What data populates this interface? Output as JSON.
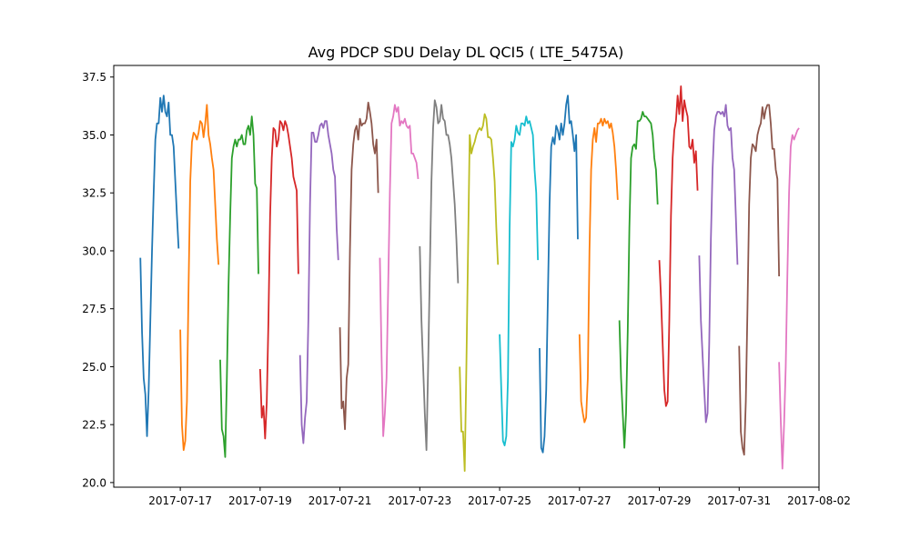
{
  "chart_data": {
    "type": "line",
    "title": "Avg PDCP SDU Delay DL QCI5 ( LTE_5475A)",
    "xlabel": "",
    "ylabel": "",
    "x_axis": "date",
    "x_range": [
      "2017-07-15T08:00",
      "2017-08-02T00:00"
    ],
    "ylim": [
      19.8,
      38.0
    ],
    "xticks": [
      "2017-07-17",
      "2017-07-19",
      "2017-07-21",
      "2017-07-23",
      "2017-07-25",
      "2017-07-27",
      "2017-07-29",
      "2017-07-31",
      "2017-08-02"
    ],
    "yticks": [
      20.0,
      22.5,
      25.0,
      27.5,
      30.0,
      32.5,
      35.0,
      37.5
    ],
    "ytick_labels": [
      "20.0",
      "22.5",
      "25.0",
      "27.5",
      "30.0",
      "32.5",
      "35.0",
      "37.5"
    ],
    "grid": false,
    "legend": "none",
    "series_colors": [
      "#1f77b4",
      "#ff7f0e",
      "#2ca02c",
      "#d62728",
      "#9467bd",
      "#8c564b",
      "#e377c2",
      "#7f7f7f",
      "#bcbd22",
      "#17becf"
    ],
    "series": [
      {
        "date": "2017-07-16",
        "values": [
          29.7,
          26.5,
          24.5,
          23.8,
          22.0,
          24.0,
          27.0,
          30.0,
          32.5,
          34.8,
          35.5,
          35.5,
          36.6,
          36.0,
          36.7,
          36.0,
          35.8,
          36.4,
          35.0,
          35.0,
          34.5,
          33.0,
          31.5,
          30.1
        ]
      },
      {
        "date": "2017-07-17",
        "values": [
          26.6,
          22.5,
          21.4,
          21.8,
          23.5,
          28.5,
          33.0,
          34.7,
          35.1,
          35.0,
          34.8,
          35.1,
          35.6,
          35.5,
          34.9,
          35.5,
          36.3,
          35.0,
          34.6,
          34.0,
          33.5,
          32.0,
          30.5,
          29.4
        ]
      },
      {
        "date": "2017-07-18",
        "values": [
          25.3,
          22.3,
          22.0,
          21.1,
          24.5,
          28.5,
          31.5,
          34.0,
          34.5,
          34.8,
          34.5,
          34.8,
          34.8,
          35.0,
          34.6,
          34.6,
          35.2,
          35.4,
          35.0,
          35.8,
          35.0,
          32.9,
          32.7,
          29.0
        ]
      },
      {
        "date": "2017-07-19",
        "values": [
          24.9,
          22.8,
          23.3,
          21.9,
          23.5,
          27.0,
          31.5,
          34.0,
          35.3,
          35.2,
          34.5,
          34.8,
          35.6,
          35.5,
          35.2,
          35.6,
          35.4,
          35.0,
          34.5,
          34.0,
          33.2,
          32.9,
          32.6,
          29.0
        ]
      },
      {
        "date": "2017-07-20",
        "values": [
          25.5,
          22.5,
          21.7,
          22.8,
          23.5,
          27.0,
          32.0,
          35.1,
          35.1,
          34.7,
          34.7,
          35.0,
          35.4,
          35.5,
          35.3,
          35.6,
          35.6,
          35.0,
          34.6,
          34.2,
          33.5,
          33.2,
          31.0,
          29.6
        ]
      },
      {
        "date": "2017-07-21",
        "values": [
          26.7,
          23.2,
          23.5,
          22.3,
          24.5,
          25.1,
          30.0,
          33.5,
          34.6,
          35.2,
          35.4,
          34.8,
          35.7,
          35.4,
          35.5,
          35.5,
          35.7,
          36.4,
          36.0,
          35.5,
          34.6,
          34.2,
          34.8,
          32.5
        ]
      },
      {
        "date": "2017-07-22",
        "values": [
          29.7,
          25.5,
          22.0,
          23.0,
          24.5,
          28.5,
          32.5,
          35.5,
          35.8,
          36.3,
          36.0,
          36.2,
          35.4,
          35.6,
          35.5,
          35.7,
          35.4,
          35.3,
          35.4,
          34.2,
          34.2,
          34.0,
          33.8,
          33.1
        ]
      },
      {
        "date": "2017-07-23",
        "values": [
          30.2,
          27.0,
          25.0,
          23.0,
          21.4,
          25.0,
          29.0,
          33.0,
          35.3,
          36.5,
          36.2,
          35.5,
          35.6,
          36.3,
          35.7,
          35.6,
          35.0,
          35.0,
          34.6,
          34.0,
          33.0,
          32.0,
          30.5,
          28.6
        ]
      },
      {
        "date": "2017-07-24",
        "values": [
          25.0,
          22.2,
          22.2,
          20.5,
          25.0,
          30.0,
          35.0,
          34.2,
          34.5,
          34.7,
          35.0,
          35.2,
          35.3,
          35.2,
          35.4,
          35.9,
          35.7,
          34.9,
          34.9,
          34.8,
          34.0,
          33.0,
          31.0,
          29.4
        ]
      },
      {
        "date": "2017-07-25",
        "values": [
          26.4,
          24.0,
          21.8,
          21.6,
          22.0,
          24.5,
          31.0,
          34.7,
          34.5,
          34.8,
          35.4,
          35.1,
          35.0,
          35.5,
          35.5,
          35.4,
          35.8,
          35.5,
          35.6,
          35.3,
          35.0,
          33.5,
          32.5,
          29.6
        ]
      },
      {
        "date": "2017-07-26",
        "values": [
          25.8,
          21.5,
          21.3,
          22.0,
          24.0,
          28.0,
          32.0,
          34.5,
          34.9,
          34.6,
          35.4,
          35.2,
          34.8,
          35.5,
          35.0,
          35.5,
          36.3,
          36.7,
          35.5,
          35.6,
          35.0,
          34.3,
          35.0,
          30.5
        ]
      },
      {
        "date": "2017-07-27",
        "values": [
          26.4,
          23.5,
          23.0,
          22.6,
          22.8,
          24.5,
          30.0,
          33.5,
          34.8,
          35.3,
          34.7,
          35.5,
          35.5,
          35.7,
          35.4,
          35.7,
          35.5,
          35.6,
          35.3,
          35.5,
          35.1,
          34.5,
          33.5,
          32.2
        ]
      },
      {
        "date": "2017-07-28",
        "values": [
          27.0,
          24.5,
          23.0,
          21.5,
          23.0,
          26.5,
          31.0,
          34.0,
          34.5,
          34.6,
          34.4,
          35.6,
          35.6,
          35.7,
          36.0,
          35.8,
          35.8,
          35.7,
          35.6,
          35.5,
          35.0,
          34.0,
          33.5,
          32.0
        ]
      },
      {
        "date": "2017-07-29",
        "values": [
          29.6,
          28.0,
          26.0,
          24.0,
          23.3,
          23.5,
          27.0,
          31.5,
          34.0,
          35.2,
          35.6,
          36.7,
          35.9,
          37.1,
          35.6,
          36.5,
          36.1,
          35.8,
          34.5,
          34.4,
          34.8,
          33.8,
          34.3,
          32.6
        ]
      },
      {
        "date": "2017-07-30",
        "values": [
          29.8,
          27.0,
          25.5,
          24.0,
          22.6,
          23.0,
          26.0,
          30.5,
          33.5,
          35.2,
          35.8,
          36.0,
          36.0,
          35.9,
          36.0,
          35.8,
          36.3,
          35.4,
          35.2,
          35.3,
          34.0,
          33.5,
          31.5,
          29.4
        ]
      },
      {
        "date": "2017-07-31",
        "values": [
          25.9,
          22.2,
          21.5,
          21.2,
          23.5,
          27.5,
          32.0,
          34.0,
          34.6,
          34.5,
          34.3,
          35.0,
          35.3,
          35.5,
          36.2,
          35.7,
          36.1,
          36.3,
          36.3,
          35.5,
          34.4,
          34.4,
          33.5,
          33.1,
          28.9
        ]
      },
      {
        "date": "2017-08-01",
        "values": [
          25.2,
          22.7,
          20.6,
          22.5,
          25.0,
          29.0,
          32.5,
          34.5,
          35.0,
          34.8,
          35.0,
          35.2,
          35.3
        ]
      }
    ]
  }
}
